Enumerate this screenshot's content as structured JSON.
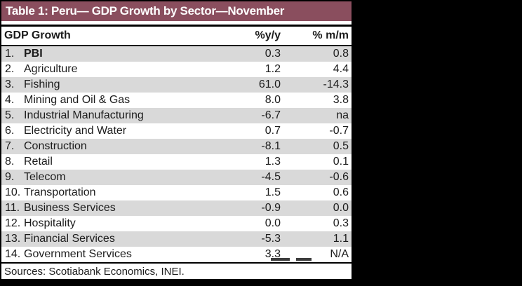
{
  "title": "Table 1: Peru— GDP Growth by Sector—November",
  "columns": {
    "name": "GDP Growth",
    "yoy": "%y/y",
    "mom": "% m/m"
  },
  "rows": [
    {
      "num": "1.",
      "name": "PBI",
      "yoy": "0.3",
      "mom": "0.8",
      "bold": true
    },
    {
      "num": "2.",
      "name": "Agriculture",
      "yoy": "1.2",
      "mom": "4.4"
    },
    {
      "num": "3.",
      "name": "Fishing",
      "yoy": "61.0",
      "mom": "-14.3"
    },
    {
      "num": "4.",
      "name": "Mining and Oil & Gas",
      "yoy": "8.0",
      "mom": "3.8"
    },
    {
      "num": "5.",
      "name": "Industrial Manufacturing",
      "yoy": "-6.7",
      "mom": "na"
    },
    {
      "num": "6.",
      "name": "Electricity and Water",
      "yoy": "0.7",
      "mom": "-0.7"
    },
    {
      "num": "7.",
      "name": "Construction",
      "yoy": "-8.1",
      "mom": "0.5"
    },
    {
      "num": "8.",
      "name": "Retail",
      "yoy": "1.3",
      "mom": "0.1"
    },
    {
      "num": "9.",
      "name": "Telecom",
      "yoy": "-4.5",
      "mom": "-0.6"
    },
    {
      "num": "10.",
      "name": "Transportation",
      "yoy": "1.5",
      "mom": "0.6"
    },
    {
      "num": "11.",
      "name": "Business Services",
      "yoy": "-0.9",
      "mom": "0.0"
    },
    {
      "num": "12.",
      "name": "Hospitality",
      "yoy": "0.0",
      "mom": "0.3"
    },
    {
      "num": "13.",
      "name": "Financial Services",
      "yoy": "-5.3",
      "mom": "1.1"
    },
    {
      "num": "14.",
      "name": "Government Services",
      "yoy": "3.3",
      "mom": "N/A"
    }
  ],
  "source": "Sources: Scotiabank Economics, INEI.",
  "colors": {
    "canvas_bg": "#000000",
    "table_bg": "#ffffff",
    "title_bar_bg": "#8A4E5E",
    "title_text": "#ffffff",
    "alt_row_bg": "#D9D9D9",
    "text": "#1C1C1C",
    "border": "#000000"
  },
  "chart_data": {
    "type": "table",
    "title": "Table 1: Peru— GDP Growth by Sector—November",
    "columns": [
      "GDP Growth",
      "%y/y",
      "% m/m"
    ],
    "rows": [
      [
        "1. PBI",
        0.3,
        0.8
      ],
      [
        "2. Agriculture",
        1.2,
        4.4
      ],
      [
        "3. Fishing",
        61.0,
        -14.3
      ],
      [
        "4. Mining and Oil & Gas",
        8.0,
        3.8
      ],
      [
        "5. Industrial Manufacturing",
        -6.7,
        "na"
      ],
      [
        "6. Electricity and Water",
        0.7,
        -0.7
      ],
      [
        "7. Construction",
        -8.1,
        0.5
      ],
      [
        "8. Retail",
        1.3,
        0.1
      ],
      [
        "9. Telecom",
        -4.5,
        -0.6
      ],
      [
        "10. Transportation",
        1.5,
        0.6
      ],
      [
        "11. Business Services",
        -0.9,
        0.0
      ],
      [
        "12. Hospitality",
        0.0,
        0.3
      ],
      [
        "13. Financial Services",
        -5.3,
        1.1
      ],
      [
        "14. Government Services",
        3.3,
        "N/A"
      ]
    ],
    "notes": "Alternating shaded rows; row 1 (PBI) label bold; source line: Sources: Scotiabank Economics, INEI."
  }
}
